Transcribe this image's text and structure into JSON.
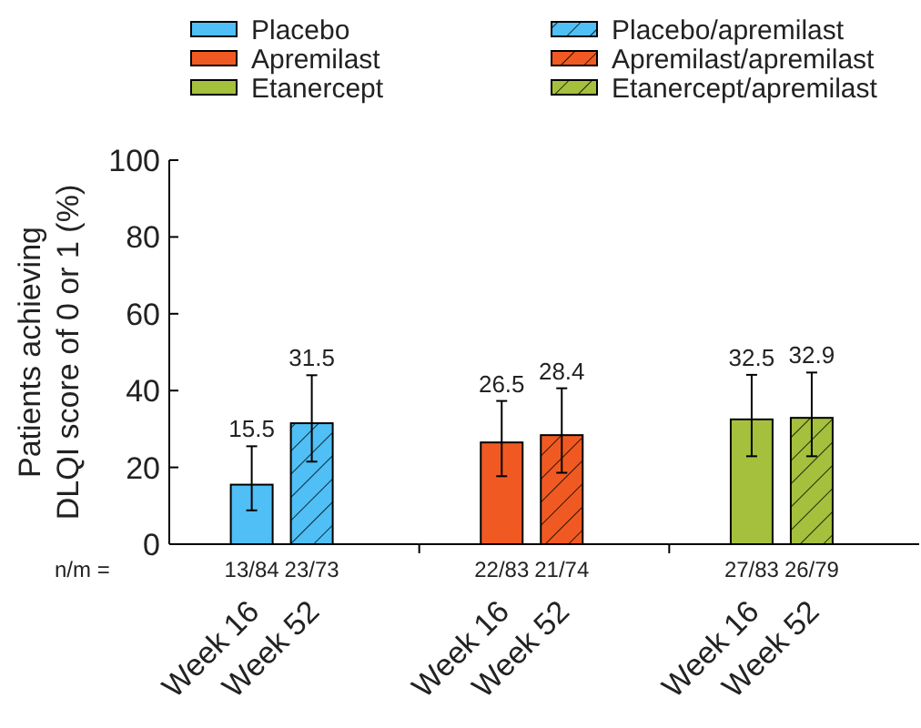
{
  "chart_data": [
    {
      "type": "bar",
      "ylabel": "Patients achieving\nDLQI score of 0 or 1 (%)",
      "categories": [
        "Week 16",
        "Week 52"
      ],
      "series": [
        {
          "name": "Placebo",
          "color": "#4fbff5",
          "values": [
            15.5,
            null
          ],
          "errors": [
            [
              8.8,
              25.5
            ],
            null
          ]
        },
        {
          "name": "Placebo/apremilast",
          "color": "#4fbff5",
          "values": [
            null,
            31.5
          ],
          "errors": [
            null,
            [
              21.5,
              44.0
            ]
          ]
        }
      ],
      "ylim": [
        0,
        100
      ],
      "yticks": [
        0,
        20,
        40,
        60,
        80,
        100
      ],
      "legend": "top",
      "data_labels": true,
      "annotations": [
        "n/m =",
        "13/84",
        "23/73"
      ]
    },
    {
      "type": "bar",
      "categories": [
        "Week 16",
        "Week 52"
      ],
      "series": [
        {
          "name": "Apremilast",
          "color": "#f05a22",
          "values": [
            26.5,
            null
          ],
          "errors": [
            [
              17.7,
              37.3
            ],
            null
          ]
        },
        {
          "name": "Apremilast/apremilast",
          "color": "#f05a22",
          "values": [
            null,
            28.4
          ],
          "errors": [
            null,
            [
              18.6,
              40.6
            ]
          ]
        }
      ],
      "ylim": [
        0,
        100
      ],
      "tick_labels": "x",
      "legend": "top",
      "data_labels": true,
      "annotations": [
        "22/83",
        "21/74"
      ]
    },
    {
      "type": "bar",
      "categories": [
        "Week 16",
        "Week 52"
      ],
      "series": [
        {
          "name": "Etanercept",
          "color": "#a5c03c",
          "values": [
            32.5,
            null
          ],
          "errors": [
            [
              22.9,
              44.1
            ],
            null
          ]
        },
        {
          "name": "Etanercept/apremilast",
          "color": "#a5c03c",
          "values": [
            null,
            32.9
          ],
          "errors": [
            null,
            [
              22.9,
              44.7
            ]
          ]
        }
      ],
      "ylim": [
        0,
        100
      ],
      "tick_labels": "x",
      "legend": "top",
      "data_labels": true,
      "annotations": [
        "27/83",
        "26/79"
      ]
    }
  ]
}
